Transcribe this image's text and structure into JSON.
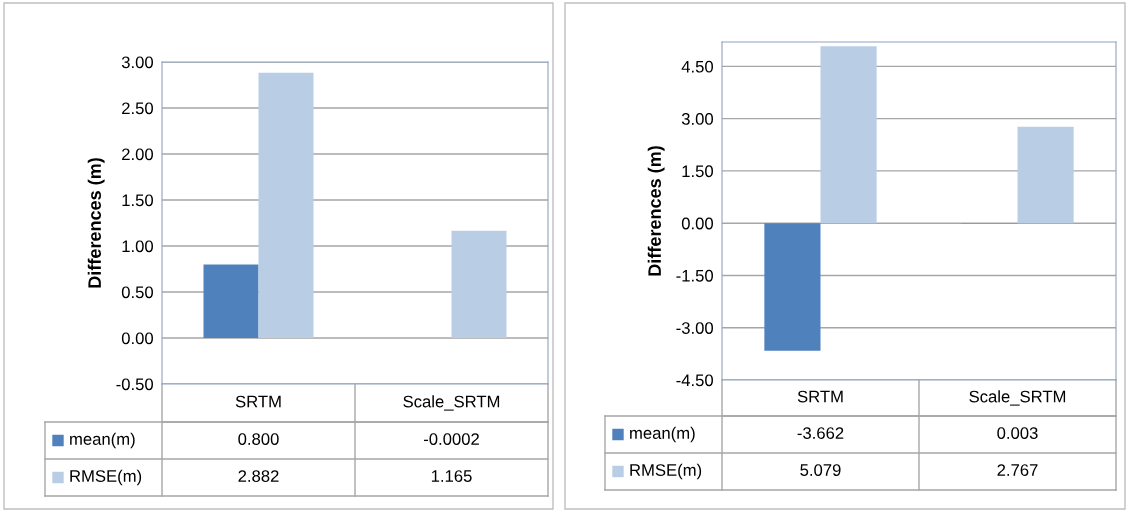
{
  "chart_data": [
    {
      "type": "bar",
      "ylabel": "Differences (m)",
      "categories": [
        "SRTM",
        "Scale_SRTM"
      ],
      "ylim": [
        -0.5,
        3.0
      ],
      "yticks": [
        {
          "value": -0.5,
          "label": "-0.50"
        },
        {
          "value": 0,
          "label": "0.00"
        },
        {
          "value": 0.5,
          "label": "0.50"
        },
        {
          "value": 1.0,
          "label": "1.00"
        },
        {
          "value": 1.5,
          "label": "1.50"
        },
        {
          "value": 2.0,
          "label": "2.00"
        },
        {
          "value": 2.5,
          "label": "2.50"
        },
        {
          "value": 3.0,
          "label": "3.00"
        }
      ],
      "grid": "y",
      "legend": "bottom",
      "series": [
        {
          "name": "mean(m)",
          "color": "#4f81bd",
          "values": [
            0.8,
            -0.0002
          ],
          "value_labels": [
            "0.800",
            "-0.0002"
          ]
        },
        {
          "name": "RMSE(m)",
          "color": "#b9cde5",
          "values": [
            2.882,
            1.165
          ],
          "value_labels": [
            "2.882",
            "1.165"
          ]
        }
      ]
    },
    {
      "type": "bar",
      "ylabel": "Differences (m)",
      "categories": [
        "SRTM",
        "Scale_SRTM"
      ],
      "ylim": [
        -4.5,
        5.2
      ],
      "yticks": [
        {
          "value": -4.5,
          "label": "-4.50"
        },
        {
          "value": -3.0,
          "label": "-3.00"
        },
        {
          "value": -1.5,
          "label": "-1.50"
        },
        {
          "value": 0,
          "label": "0.00"
        },
        {
          "value": 1.5,
          "label": "1.50"
        },
        {
          "value": 3.0,
          "label": "3.00"
        },
        {
          "value": 4.5,
          "label": "4.50"
        }
      ],
      "grid": "y",
      "legend": "bottom",
      "series": [
        {
          "name": "mean(m)",
          "color": "#4f81bd",
          "values": [
            -3.662,
            0.003
          ],
          "value_labels": [
            "-3.662",
            "0.003"
          ]
        },
        {
          "name": "RMSE(m)",
          "color": "#b9cde5",
          "values": [
            5.079,
            2.767
          ],
          "value_labels": [
            "5.079",
            "2.767"
          ]
        }
      ]
    }
  ]
}
